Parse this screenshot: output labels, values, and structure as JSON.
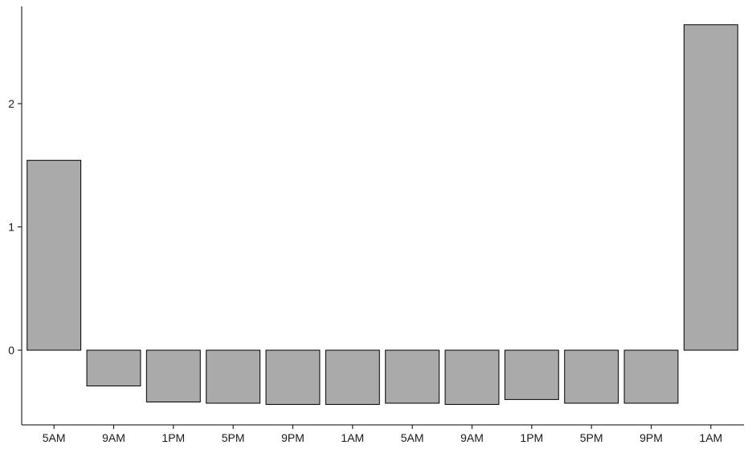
{
  "chart_data": {
    "type": "bar",
    "categories": [
      "5AM",
      "9AM",
      "1PM",
      "5PM",
      "9PM",
      "1AM",
      "5AM",
      "9AM",
      "1PM",
      "5PM",
      "9PM",
      "1AM"
    ],
    "values": [
      1.54,
      -0.29,
      -0.42,
      -0.43,
      -0.44,
      -0.44,
      -0.43,
      -0.44,
      -0.4,
      -0.43,
      -0.43,
      2.64
    ],
    "title": "",
    "xlabel": "",
    "ylabel": "",
    "ylim": [
      -0.6,
      2.8
    ],
    "yticks": [
      0,
      1,
      2
    ],
    "grid": false,
    "legend": "none",
    "bar_color": "#aaaaaa",
    "bar_stroke": "#000000"
  }
}
